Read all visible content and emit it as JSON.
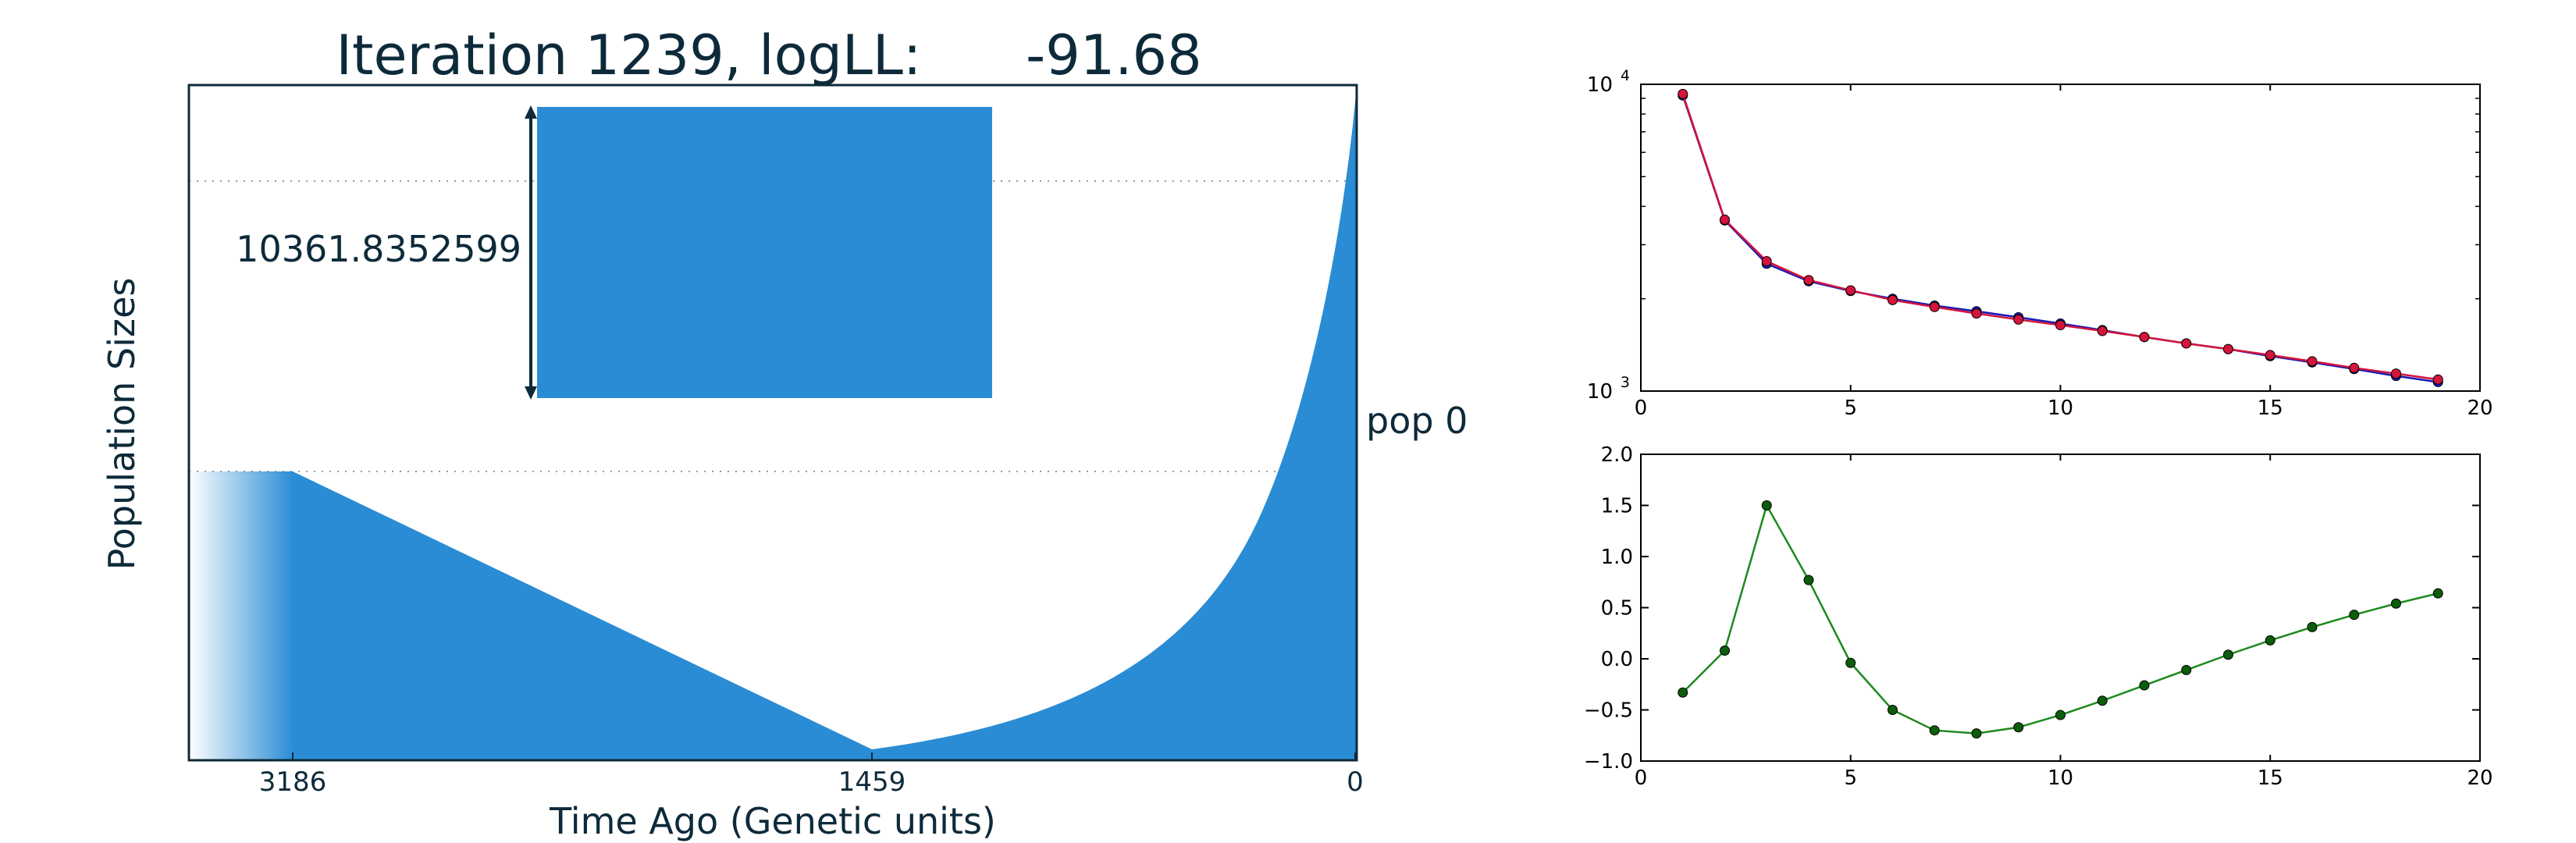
{
  "colors": {
    "fill": "#2a8cd4",
    "text": "#0d2a3a",
    "series_blue": "#1a1ab8",
    "series_red": "#d4143c",
    "series_green": "#1d8a1d",
    "marker_green": "#0b5c0b"
  },
  "chart_data": [
    {
      "type": "area",
      "title": "Iteration 1239, logLL:      -91.68",
      "xlabel": "Time Ago (Genetic units)",
      "ylabel": "Population Sizes",
      "x_ticks": [
        "3186",
        "1459",
        "0"
      ],
      "scale_bar_label": "10361.8352599",
      "population_label": "pop 0",
      "grid": "dotted horizontal reference lines"
    },
    {
      "type": "line",
      "yscale": "log",
      "xlim": [
        0,
        20
      ],
      "ylim": [
        1000,
        10000
      ],
      "x_ticks": [
        0,
        5,
        10,
        15,
        20
      ],
      "y_ticks": [
        {
          "base": "10",
          "exp": "3",
          "value": 1000
        },
        {
          "base": "10",
          "exp": "4",
          "value": 10000
        }
      ],
      "series": [
        {
          "color": "series_blue",
          "x": [
            1,
            2,
            3,
            4,
            5,
            6,
            7,
            8,
            9,
            10,
            11,
            12,
            13,
            14,
            15,
            16,
            17,
            18,
            19
          ],
          "values": [
            9200,
            3600,
            2600,
            2280,
            2120,
            2000,
            1900,
            1820,
            1740,
            1660,
            1580,
            1500,
            1430,
            1370,
            1300,
            1240,
            1180,
            1120,
            1070
          ]
        },
        {
          "color": "series_red",
          "x": [
            1,
            2,
            3,
            4,
            5,
            6,
            7,
            8,
            9,
            10,
            11,
            12,
            13,
            14,
            15,
            16,
            17,
            18,
            19
          ],
          "values": [
            9300,
            3620,
            2650,
            2300,
            2130,
            1980,
            1880,
            1790,
            1710,
            1640,
            1570,
            1500,
            1430,
            1370,
            1310,
            1250,
            1190,
            1140,
            1090
          ]
        }
      ]
    },
    {
      "type": "line",
      "xlim": [
        0,
        20
      ],
      "ylim": [
        -1.0,
        2.0
      ],
      "x_ticks": [
        0,
        5,
        10,
        15,
        20
      ],
      "y_ticks": [
        "−1.0",
        "−0.5",
        "0.0",
        "0.5",
        "1.0",
        "1.5",
        "2.0"
      ],
      "series": [
        {
          "color": "series_green",
          "x": [
            1,
            2,
            3,
            4,
            5,
            6,
            7,
            8,
            9,
            10,
            11,
            12,
            13,
            14,
            15,
            16,
            17,
            18,
            19
          ],
          "values": [
            -0.33,
            0.08,
            1.5,
            0.77,
            -0.04,
            -0.5,
            -0.7,
            -0.73,
            -0.67,
            -0.55,
            -0.41,
            -0.26,
            -0.11,
            0.04,
            0.18,
            0.31,
            0.43,
            0.54,
            0.64
          ]
        }
      ]
    }
  ]
}
